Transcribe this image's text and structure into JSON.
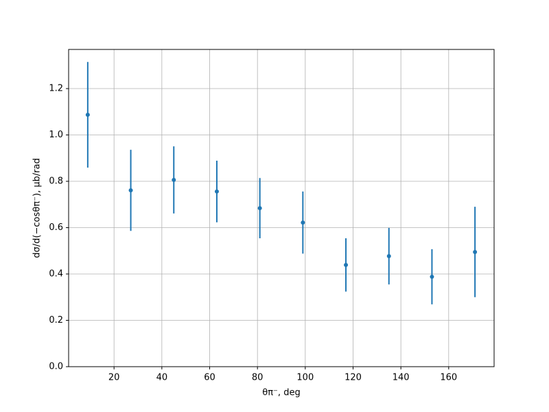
{
  "chart_data": {
    "type": "errorbar",
    "xlabel": "θπ⁻, deg",
    "ylabel": "dσ/d(−cosθπ⁻), μb/rad",
    "series": [
      {
        "color": "#1f77b4",
        "x": [
          9,
          27,
          45,
          63,
          81,
          99,
          117,
          135,
          153,
          171
        ],
        "values": [
          1.087,
          0.761,
          0.806,
          0.756,
          0.684,
          0.622,
          0.439,
          0.477,
          0.388,
          0.495
        ],
        "errors": [
          0.228,
          0.175,
          0.145,
          0.133,
          0.13,
          0.134,
          0.115,
          0.122,
          0.119,
          0.195
        ]
      }
    ],
    "xlim": [
      1,
      179
    ],
    "ylim": [
      0,
      1.369
    ],
    "xticks": [
      20,
      40,
      60,
      80,
      100,
      120,
      140,
      160
    ],
    "yticks": [
      {
        "value": 0,
        "label": "0.0"
      },
      {
        "value": 0.2,
        "label": "0.2"
      },
      {
        "value": 0.4,
        "label": "0.4"
      },
      {
        "value": 0.6,
        "label": "0.6"
      },
      {
        "value": 0.8,
        "label": "0.8"
      },
      {
        "value": 1.0,
        "label": "1.0"
      },
      {
        "value": 1.2,
        "label": "1.2"
      }
    ],
    "grid": true
  }
}
